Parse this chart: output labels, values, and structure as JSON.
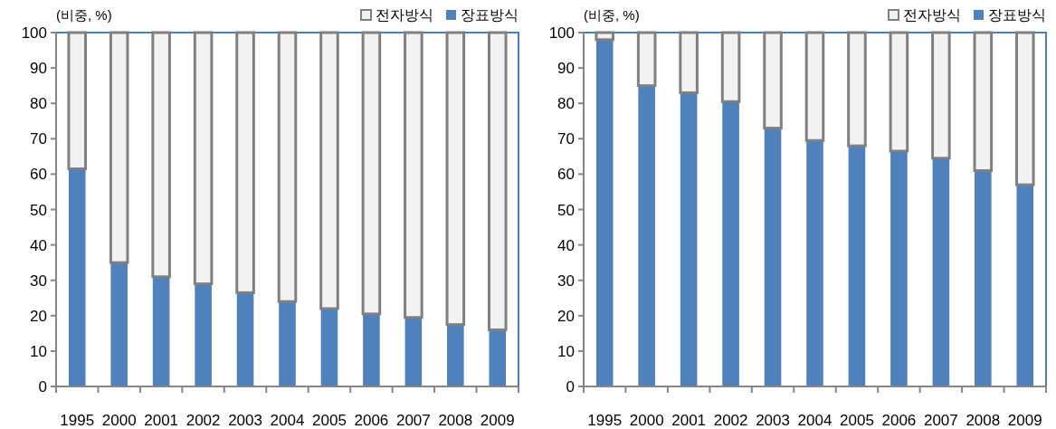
{
  "chart_data": [
    {
      "type": "bar",
      "ylabel": "(비중, %)",
      "categories": [
        "1995",
        "2000",
        "2001",
        "2002",
        "2003",
        "2004",
        "2005",
        "2006",
        "2007",
        "2008",
        "2009"
      ],
      "stacked": true,
      "ylim": [
        0,
        100
      ],
      "yticks": [
        0,
        10,
        20,
        30,
        40,
        50,
        60,
        70,
        80,
        90,
        100
      ],
      "legend": "top right",
      "series": [
        {
          "name": "장표방식",
          "color": "#4f81bd",
          "values": [
            61.5,
            35,
            31,
            29,
            26.5,
            24,
            22,
            20.5,
            19.5,
            17.5,
            16
          ]
        },
        {
          "name": "전자방식",
          "color": "#f2f2f2",
          "values": [
            38.5,
            65,
            69,
            71,
            73.5,
            76,
            78,
            79.5,
            80.5,
            82.5,
            84
          ]
        }
      ]
    },
    {
      "type": "bar",
      "ylabel": "(비중, %)",
      "categories": [
        "1995",
        "2000",
        "2001",
        "2002",
        "2003",
        "2004",
        "2005",
        "2006",
        "2007",
        "2008",
        "2009"
      ],
      "stacked": true,
      "ylim": [
        0,
        100
      ],
      "yticks": [
        0,
        10,
        20,
        30,
        40,
        50,
        60,
        70,
        80,
        90,
        100
      ],
      "legend": "top right",
      "series": [
        {
          "name": "장표방식",
          "color": "#4f81bd",
          "values": [
            98,
            85,
            83,
            80.5,
            73,
            69.5,
            68,
            66.5,
            64.5,
            61,
            57
          ]
        },
        {
          "name": "전자방식",
          "color": "#f2f2f2",
          "values": [
            2,
            15,
            17,
            19.5,
            27,
            30.5,
            32,
            33.5,
            35.5,
            39,
            43
          ]
        }
      ]
    }
  ]
}
